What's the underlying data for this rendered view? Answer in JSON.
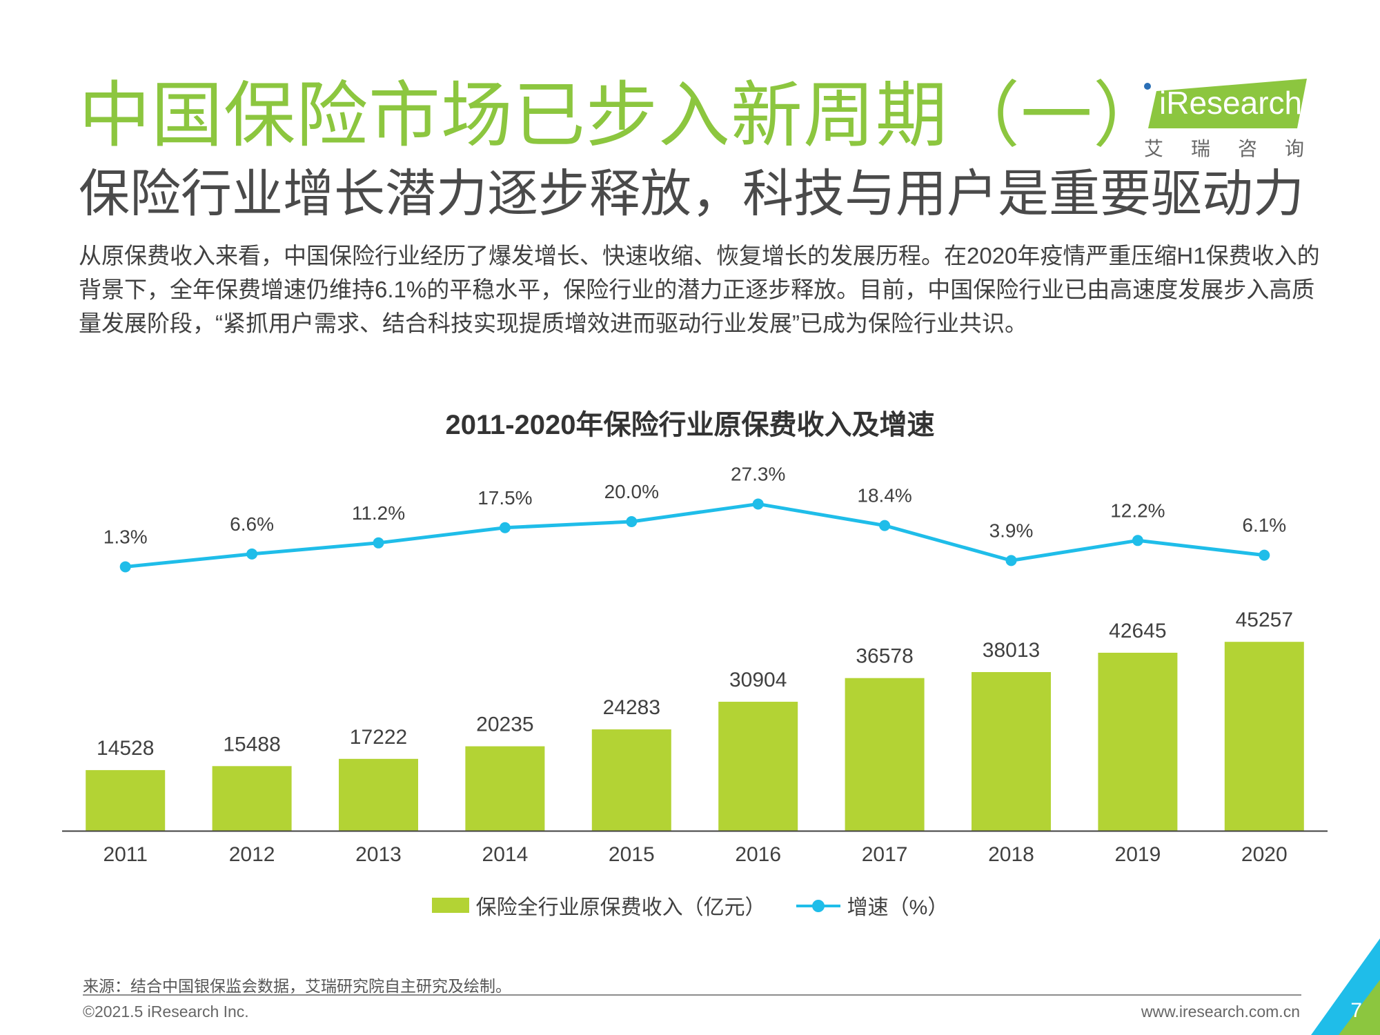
{
  "header": {
    "title": "中国保险市场已步入新周期（一）",
    "subtitle": "保险行业增长潜力逐步释放，科技与用户是重要驱动力",
    "paragraph": "从原保费收入来看，中国保险行业经历了爆发增长、快速收缩、恢复增长的发展历程。在2020年疫情严重压缩H1保费收入的背景下，全年保费增速仍维持6.1%的平稳水平，保险行业的潜力正逐步释放。目前，中国保险行业已由高速度发展步入高质量发展阶段，“紧抓用户需求、结合科技实现提质增效进而驱动行业发展”已成为保险行业共识。"
  },
  "logo": {
    "brand": "iResearch",
    "cn": "艾瑞咨询"
  },
  "chart_data": {
    "type": "bar",
    "title": "2011-2020年保险行业原保费收入及增速",
    "categories": [
      "2011",
      "2012",
      "2013",
      "2014",
      "2015",
      "2016",
      "2017",
      "2018",
      "2019",
      "2020"
    ],
    "series": [
      {
        "name": "保险全行业原保费收入（亿元）",
        "type": "bar",
        "values": [
          14528,
          15488,
          17222,
          20235,
          24283,
          30904,
          36578,
          38013,
          42645,
          45257
        ],
        "labels": [
          "14528",
          "15488",
          "17222",
          "20235",
          "24283",
          "30904",
          "36578",
          "38013",
          "42645",
          "45257"
        ]
      },
      {
        "name": "增速（%）",
        "type": "line",
        "values": [
          1.3,
          6.6,
          11.2,
          17.5,
          20.0,
          27.3,
          18.4,
          3.9,
          12.2,
          6.1
        ],
        "labels": [
          "1.3%",
          "6.6%",
          "11.2%",
          "17.5%",
          "20.0%",
          "27.3%",
          "18.4%",
          "3.9%",
          "12.2%",
          "6.1%"
        ]
      }
    ],
    "legend_position": "bottom",
    "grid": false,
    "colors": {
      "bar": "#b3d334",
      "line": "#1fbde9"
    }
  },
  "footer": {
    "source": "来源：结合中国银保监会数据，艾瑞研究院自主研究及绘制。",
    "copyright": "©2021.5 iResearch Inc.",
    "website": "www.iresearch.com.cn",
    "page": "7"
  },
  "colors": {
    "title": "#8cc63f",
    "accent_green": "#b3d334",
    "accent_blue": "#1fbde9",
    "logo_green": "#8cc63f"
  }
}
